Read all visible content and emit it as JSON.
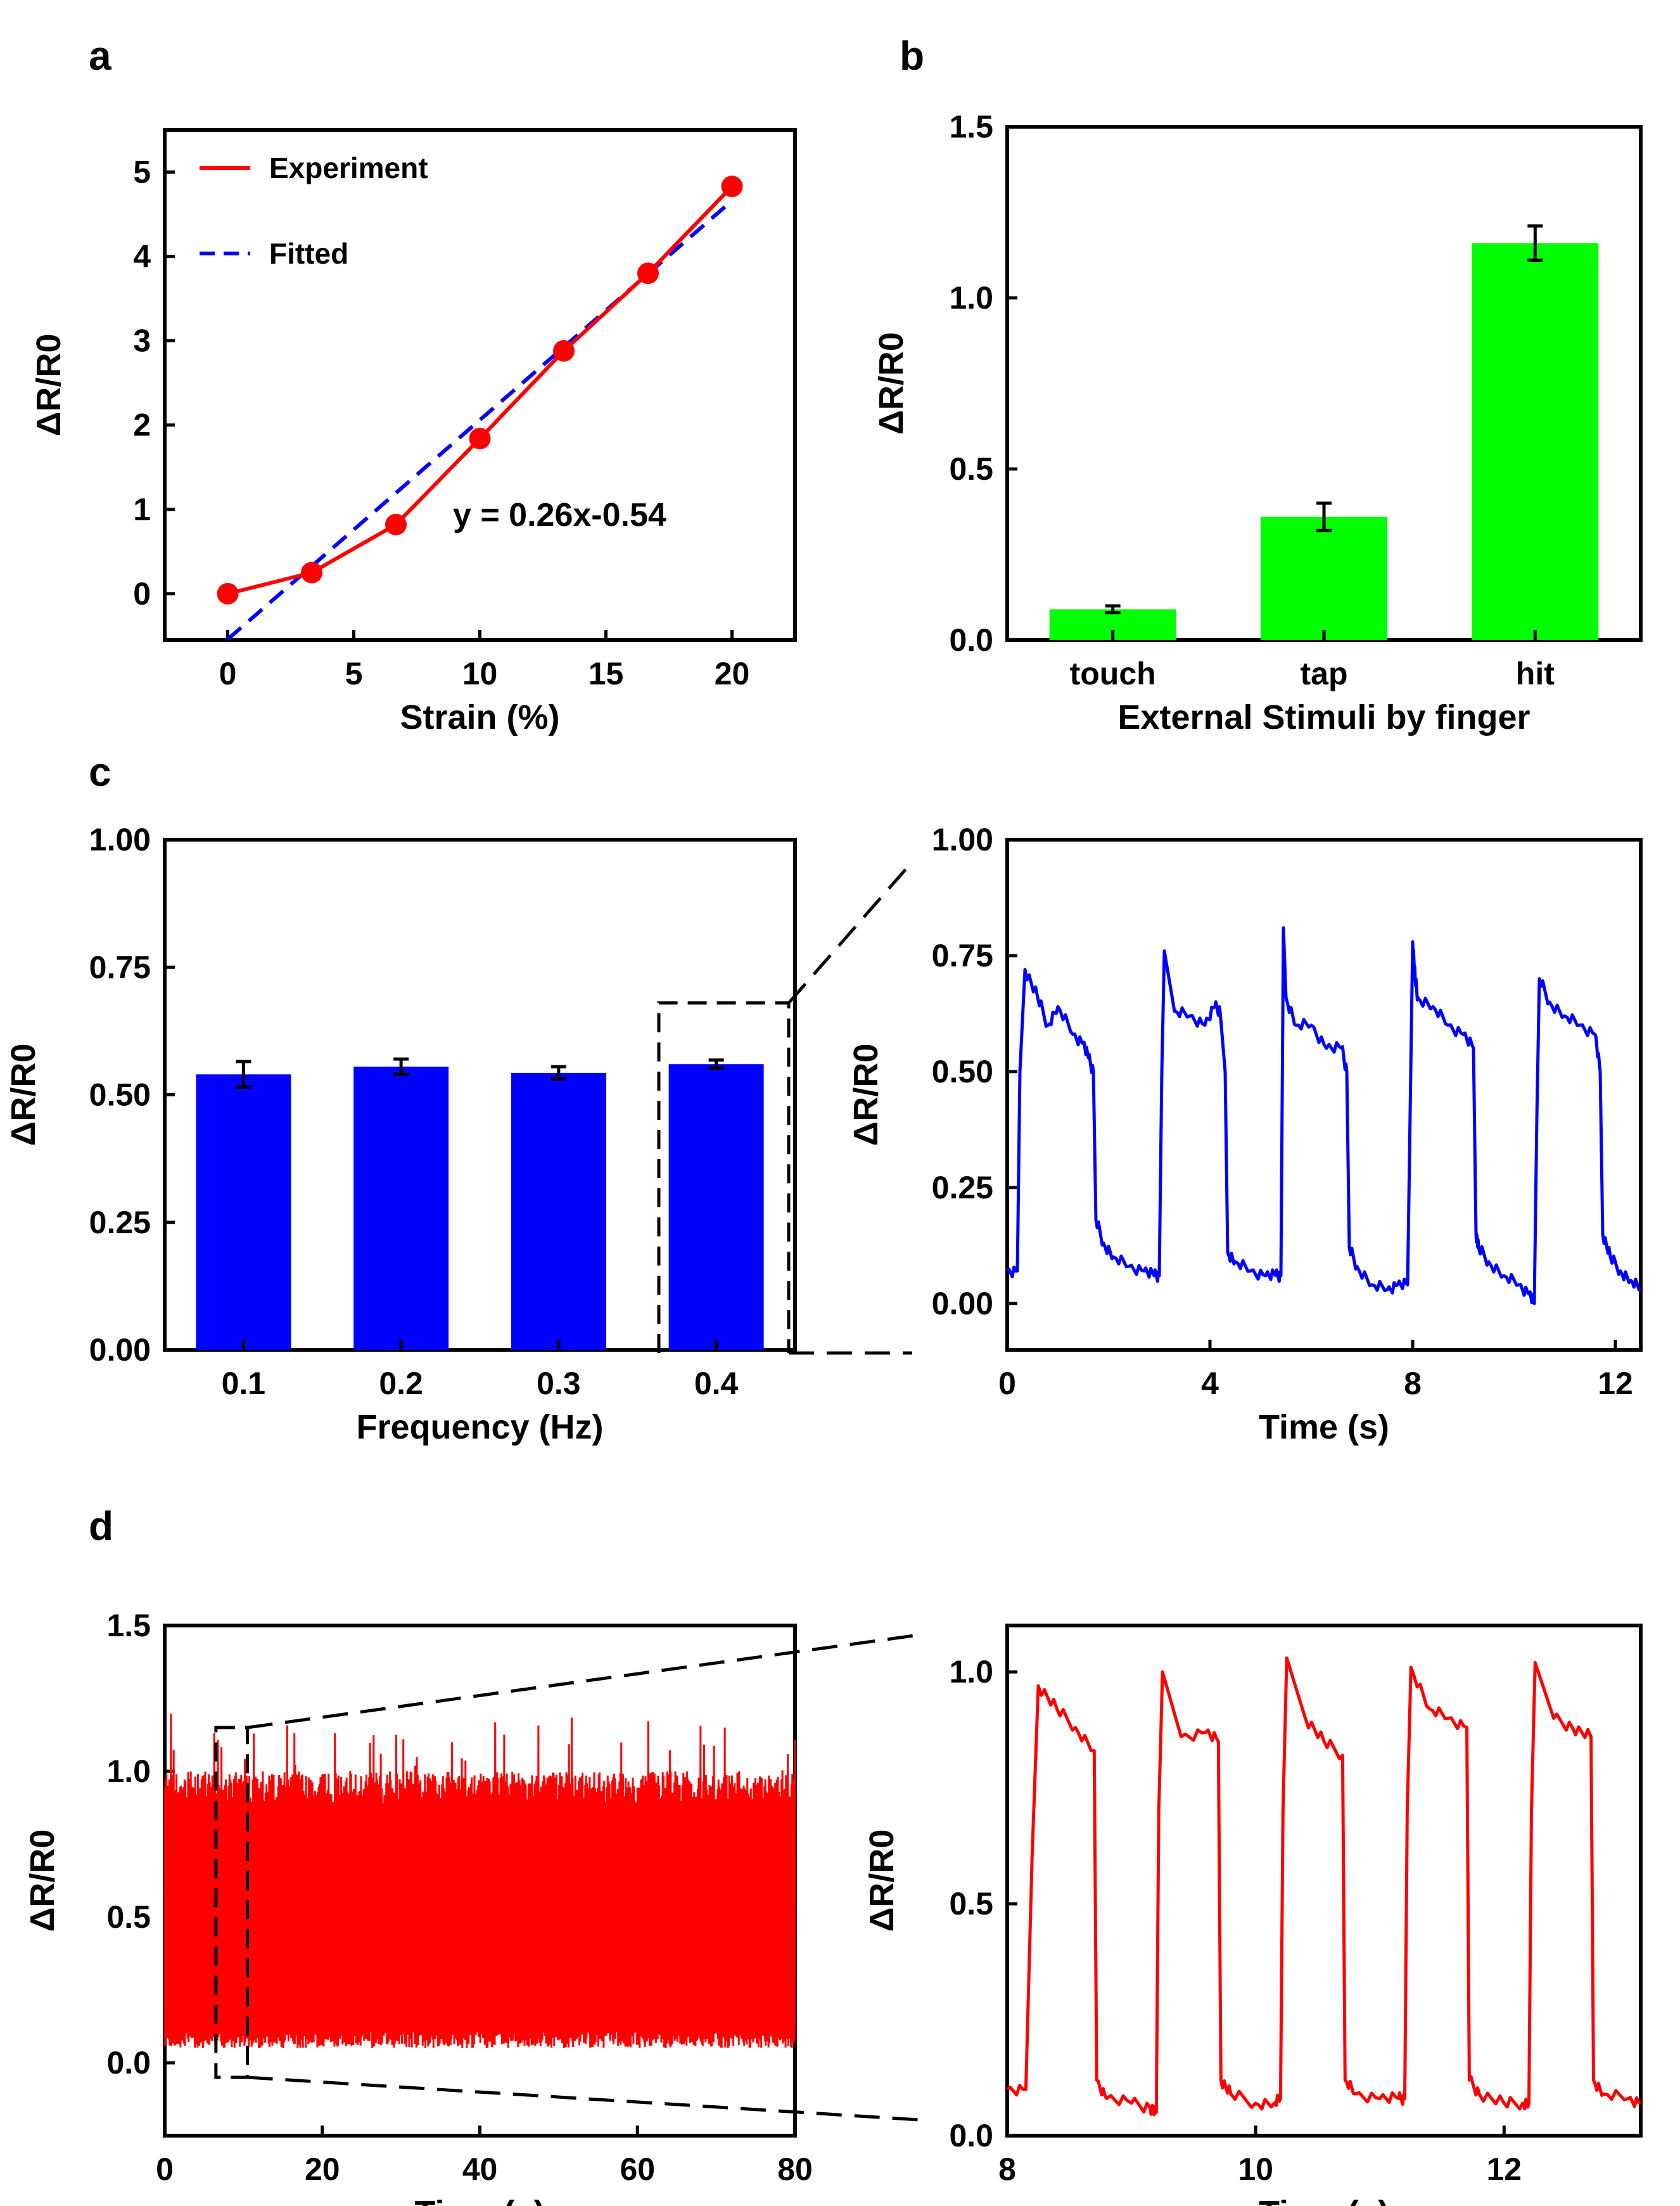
{
  "panels": {
    "a": {
      "letter": "a"
    },
    "b": {
      "letter": "b"
    },
    "c": {
      "letter": "c"
    },
    "d": {
      "letter": "d"
    }
  },
  "chart_data": [
    {
      "id": "a",
      "type": "line",
      "title": "",
      "xlabel": "Strain (%)",
      "ylabel": "ΔR/R0",
      "xlim": [
        -2.5,
        22.5
      ],
      "ylim": [
        -0.55,
        5.5
      ],
      "xticks": [
        0,
        5,
        10,
        15,
        20
      ],
      "yticks": [
        0,
        1,
        2,
        3,
        4,
        5
      ],
      "series": [
        {
          "name": "Experiment",
          "color": "#ff0000",
          "style": "solid-markers",
          "x": [
            0,
            3.33,
            6.67,
            10,
            13.33,
            16.67,
            20
          ],
          "y": [
            0.0,
            0.25,
            0.82,
            1.84,
            2.88,
            3.8,
            4.83
          ]
        },
        {
          "name": "Fitted",
          "color": "#0000ff",
          "style": "dashed",
          "x": [
            0,
            20
          ],
          "y": [
            -0.54,
            4.66
          ]
        }
      ],
      "annotation": "y = 0.26x-0.54",
      "legend": "top-left"
    },
    {
      "id": "b",
      "type": "bar",
      "title": "",
      "xlabel": "External Stimuli by finger",
      "ylabel": "ΔR/R0",
      "ylim": [
        0,
        1.5
      ],
      "yticks": [
        "0.0",
        "0.5",
        "1.0",
        "1.5"
      ],
      "categories": [
        "touch",
        "tap",
        "hit"
      ],
      "values": [
        0.09,
        0.36,
        1.16
      ],
      "errors": [
        0.01,
        0.04,
        0.05
      ],
      "color": "#00ff00"
    },
    {
      "id": "c-left",
      "type": "bar",
      "title": "",
      "xlabel": "Frequency (Hz)",
      "ylabel": "ΔR/R0",
      "ylim": [
        0,
        1.0
      ],
      "yticks": [
        "0.00",
        "0.25",
        "0.50",
        "0.75",
        "1.00"
      ],
      "categories": [
        "0.1",
        "0.2",
        "0.3",
        "0.4"
      ],
      "values": [
        0.54,
        0.555,
        0.543,
        0.56
      ],
      "errors": [
        0.025,
        0.015,
        0.012,
        0.008
      ],
      "color": "#0000ff"
    },
    {
      "id": "c-right",
      "type": "line",
      "title": "",
      "xlabel": "Time (s)",
      "ylabel": "ΔR/R0",
      "xlim": [
        0,
        12.5
      ],
      "ylim": [
        -0.1,
        1.0
      ],
      "xticks": [
        0,
        4,
        8,
        12
      ],
      "yticks": [
        "0.00",
        "0.25",
        "0.50",
        "0.75",
        "1.00"
      ],
      "color": "#0000ff",
      "series": [
        {
          "name": "response",
          "x": [
            0,
            0.2,
            0.25,
            0.35,
            0.6,
            0.8,
            1.0,
            1.3,
            1.5,
            1.6,
            1.7,
            1.75,
            1.9,
            2.1,
            2.4,
            2.7,
            2.9,
            3.0,
            3.05,
            3.1,
            3.3,
            3.6,
            3.9,
            4.1,
            4.2,
            4.3,
            4.35,
            4.5,
            4.8,
            5.1,
            5.3,
            5.4,
            5.45,
            5.5,
            5.7,
            6.0,
            6.3,
            6.6,
            6.7,
            6.75,
            6.9,
            7.2,
            7.5,
            7.7,
            7.9,
            8.0,
            8.05,
            8.1,
            8.4,
            8.7,
            9.0,
            9.2,
            9.25,
            9.3,
            9.5,
            9.8,
            10.1,
            10.3,
            10.4,
            10.45,
            10.5,
            10.7,
            11.0,
            11.3,
            11.6,
            11.7,
            11.75,
            11.9,
            12.1,
            12.3,
            12.5
          ],
          "y": [
            0.07,
            0.07,
            0.5,
            0.72,
            0.66,
            0.6,
            0.64,
            0.58,
            0.56,
            0.53,
            0.5,
            0.18,
            0.13,
            0.1,
            0.08,
            0.07,
            0.06,
            0.06,
            0.5,
            0.76,
            0.63,
            0.62,
            0.6,
            0.64,
            0.63,
            0.5,
            0.11,
            0.09,
            0.07,
            0.06,
            0.06,
            0.06,
            0.81,
            0.66,
            0.6,
            0.6,
            0.55,
            0.55,
            0.5,
            0.12,
            0.08,
            0.04,
            0.03,
            0.04,
            0.04,
            0.78,
            0.7,
            0.66,
            0.64,
            0.6,
            0.58,
            0.55,
            0.15,
            0.12,
            0.09,
            0.06,
            0.04,
            0.02,
            0.0,
            0.4,
            0.7,
            0.65,
            0.62,
            0.6,
            0.58,
            0.5,
            0.15,
            0.1,
            0.07,
            0.05,
            0.03
          ]
        }
      ]
    },
    {
      "id": "d-left",
      "type": "line",
      "title": "",
      "xlabel": "Time (s)",
      "ylabel": "ΔR/R0",
      "xlim": [
        0,
        80
      ],
      "ylim": [
        -0.25,
        1.5
      ],
      "xticks": [
        0,
        20,
        40,
        60,
        80
      ],
      "yticks": [
        "0.0",
        "0.5",
        "1.0",
        "1.5"
      ],
      "color": "#ff0000",
      "series": [
        {
          "name": "cyclic response",
          "envelope_min": 0.05,
          "envelope_max": 1.0,
          "peak_max": 1.21
        }
      ]
    },
    {
      "id": "d-right",
      "type": "line",
      "title": "",
      "xlabel": "Time (s)",
      "ylabel": "ΔR/R0",
      "xlim": [
        8,
        13.1
      ],
      "ylim": [
        0.0,
        1.1
      ],
      "xticks": [
        8,
        10,
        12
      ],
      "yticks": [
        "0.0",
        "0.5",
        "1.0"
      ],
      "color": "#ff0000",
      "series": [
        {
          "name": "response",
          "x": [
            8.0,
            8.15,
            8.2,
            8.25,
            8.4,
            8.55,
            8.7,
            8.72,
            8.8,
            9.0,
            9.15,
            9.2,
            9.22,
            9.25,
            9.4,
            9.6,
            9.7,
            9.72,
            9.8,
            10.0,
            10.15,
            10.2,
            10.22,
            10.25,
            10.4,
            10.55,
            10.7,
            10.72,
            10.8,
            11.0,
            11.15,
            11.2,
            11.22,
            11.25,
            11.4,
            11.55,
            11.7,
            11.72,
            11.8,
            12.0,
            12.15,
            12.2,
            12.22,
            12.25,
            12.4,
            12.55,
            12.7,
            12.72,
            12.8,
            13.0,
            13.1
          ],
          "y": [
            0.1,
            0.1,
            0.6,
            0.97,
            0.92,
            0.88,
            0.83,
            0.12,
            0.08,
            0.07,
            0.06,
            0.05,
            0.7,
            1.0,
            0.86,
            0.87,
            0.85,
            0.12,
            0.09,
            0.07,
            0.07,
            0.08,
            0.7,
            1.03,
            0.9,
            0.85,
            0.82,
            0.12,
            0.09,
            0.08,
            0.08,
            0.08,
            0.7,
            1.01,
            0.92,
            0.9,
            0.88,
            0.12,
            0.09,
            0.07,
            0.07,
            0.07,
            0.7,
            1.02,
            0.9,
            0.88,
            0.86,
            0.12,
            0.09,
            0.08,
            0.07
          ]
        }
      ]
    }
  ]
}
